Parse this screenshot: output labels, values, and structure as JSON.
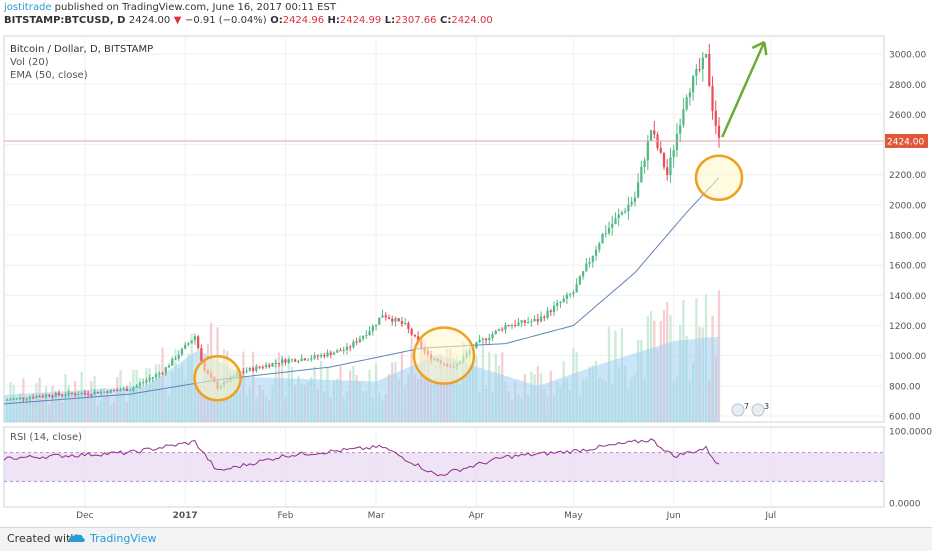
{
  "header": {
    "author": "jostitrade",
    "published_text": "published on TradingView.com, June 16, 2017 00:11 EST",
    "symbol": "BITSTAMP:BTCUSD, D",
    "last": "2424.00",
    "change_arrow": "▼",
    "change": "−0.91 (−0.04%)",
    "o_label": "O:",
    "o_value": "2424.96",
    "h_label": "H:",
    "h_value": "2424.99",
    "l_label": "L:",
    "l_value": "2307.66",
    "c_label": "C:",
    "c_value": "2424.00"
  },
  "legend": {
    "title": "Bitcoin / Dollar, D, BITSTAMP",
    "vol": "Vol (20)",
    "ema": "EMA (50, close)",
    "rsi": "RSI (14, close)"
  },
  "price_label": "2424.00",
  "event_badges": [
    "7",
    "3"
  ],
  "footer": {
    "created": "Created with",
    "brand": "TradingView"
  },
  "colors": {
    "up": "#53b987",
    "down": "#eb4d5c",
    "ema": "#5d86b8",
    "volume": "#9fd0f0",
    "rsi": "#8e2f8c",
    "rsi_band": "#e8d9f1",
    "highlight": "#f0a020",
    "arrow": "#6cab35",
    "price_line": "#e8a3a3"
  },
  "chart_data": {
    "type": "candlestick",
    "symbol": "BITSTAMP:BTCUSD",
    "interval": "D",
    "price_axis": {
      "ticks": [
        600,
        800,
        1000,
        1200,
        1400,
        1600,
        1800,
        2000,
        2200,
        2400,
        2600,
        2800,
        3000
      ],
      "tick_labels": [
        "600.00",
        "800.00",
        "1000.00",
        "1200.00",
        "1400.00",
        "1600.00",
        "1800.00",
        "2000.00",
        "2200.00",
        "2400.00",
        "2600.00",
        "2800.00",
        "3000.00"
      ],
      "range": [
        560,
        3120
      ]
    },
    "rsi_axis": {
      "ticks": [
        0,
        100
      ],
      "tick_labels": [
        "0.0000",
        "100.0000"
      ],
      "band": [
        30,
        70
      ]
    },
    "time_axis": {
      "labels": [
        "Dec",
        "2017",
        "Feb",
        "Mar",
        "Apr",
        "May",
        "Jun",
        "Jul"
      ],
      "label_dates": [
        "2016-12-01",
        "2017-01-01",
        "2017-02-01",
        "2017-03-01",
        "2017-04-01",
        "2017-05-01",
        "2017-06-01",
        "2017-07-01"
      ],
      "range": [
        "2016-11-06",
        "2017-08-05"
      ]
    },
    "last_price": 2424.0,
    "price_anchors": [
      [
        "2016-11-06",
        705
      ],
      [
        "2016-11-20",
        740
      ],
      [
        "2016-12-01",
        750
      ],
      [
        "2016-12-15",
        778
      ],
      [
        "2016-12-25",
        895
      ],
      [
        "2017-01-04",
        1130
      ],
      [
        "2017-01-07",
        900
      ],
      [
        "2017-01-11",
        790
      ],
      [
        "2017-01-18",
        890
      ],
      [
        "2017-01-31",
        965
      ],
      [
        "2017-02-10",
        990
      ],
      [
        "2017-02-20",
        1045
      ],
      [
        "2017-02-28",
        1190
      ],
      [
        "2017-03-03",
        1275
      ],
      [
        "2017-03-10",
        1200
      ],
      [
        "2017-03-17",
        1000
      ],
      [
        "2017-03-25",
        920
      ],
      [
        "2017-04-01",
        1075
      ],
      [
        "2017-04-10",
        1200
      ],
      [
        "2017-04-20",
        1235
      ],
      [
        "2017-05-01",
        1420
      ],
      [
        "2017-05-10",
        1800
      ],
      [
        "2017-05-20",
        2050
      ],
      [
        "2017-05-25",
        2500
      ],
      [
        "2017-05-30",
        2200
      ],
      [
        "2017-06-05",
        2750
      ],
      [
        "2017-06-11",
        2970
      ],
      [
        "2017-06-13",
        2650
      ],
      [
        "2017-06-15",
        2424
      ]
    ],
    "ema_anchors": [
      [
        "2016-11-06",
        680
      ],
      [
        "2016-12-15",
        745
      ],
      [
        "2017-01-11",
        840
      ],
      [
        "2017-02-15",
        925
      ],
      [
        "2017-03-15",
        1050
      ],
      [
        "2017-04-10",
        1080
      ],
      [
        "2017-05-01",
        1200
      ],
      [
        "2017-05-20",
        1550
      ],
      [
        "2017-06-05",
        1950
      ],
      [
        "2017-06-15",
        2180
      ]
    ],
    "volume_anchors": [
      [
        "2016-11-06",
        120
      ],
      [
        "2016-12-20",
        160
      ],
      [
        "2017-01-05",
        320
      ],
      [
        "2017-01-20",
        200
      ],
      [
        "2017-03-01",
        180
      ],
      [
        "2017-03-20",
        300
      ],
      [
        "2017-04-20",
        160
      ],
      [
        "2017-05-10",
        260
      ],
      [
        "2017-06-01",
        360
      ],
      [
        "2017-06-15",
        380
      ]
    ],
    "rsi_anchors": [
      [
        "2016-11-06",
        62
      ],
      [
        "2016-12-15",
        70
      ],
      [
        "2017-01-04",
        85
      ],
      [
        "2017-01-11",
        44
      ],
      [
        "2017-02-01",
        66
      ],
      [
        "2017-03-03",
        78
      ],
      [
        "2017-03-20",
        38
      ],
      [
        "2017-04-10",
        64
      ],
      [
        "2017-05-01",
        72
      ],
      [
        "2017-05-25",
        88
      ],
      [
        "2017-06-01",
        65
      ],
      [
        "2017-06-11",
        76
      ],
      [
        "2017-06-15",
        52
      ]
    ],
    "annotations": {
      "highlight_ellipses": [
        {
          "date": "2017-01-11",
          "price": 850
        },
        {
          "date": "2017-03-22",
          "price": 1000
        },
        {
          "date": "2017-06-15",
          "price": 2180
        }
      ],
      "forecast_arrow": {
        "from": [
          "2017-06-16",
          2450
        ],
        "to": [
          "2017-06-29",
          3080
        ]
      }
    }
  }
}
